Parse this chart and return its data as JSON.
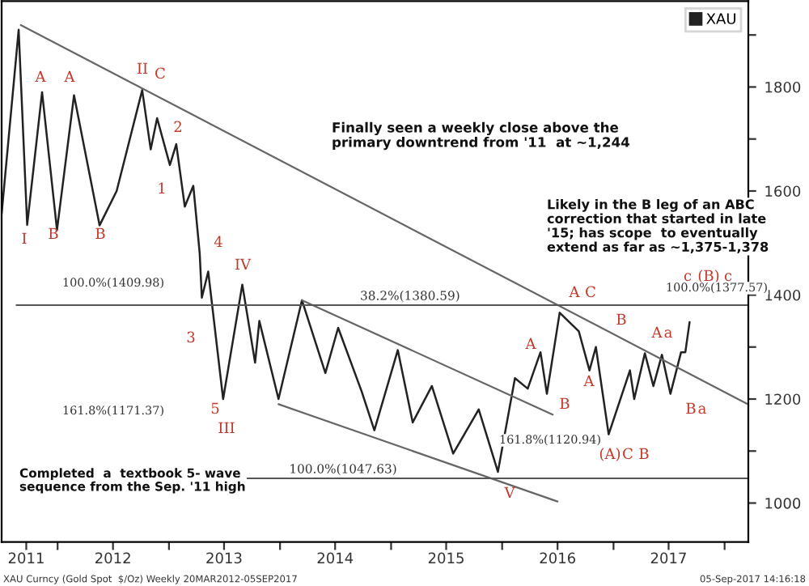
{
  "chart_data": {
    "type": "line",
    "series": [
      {
        "name": "XAU",
        "color": "#222222",
        "x": [
          "2011-07-01",
          "2011-08-26",
          "2011-09-23",
          "2011-11-11",
          "2011-12-30",
          "2012-02-24",
          "2012-05-18",
          "2012-07-13",
          "2012-10-05",
          "2012-11-02",
          "2012-11-23",
          "2013-01-04",
          "2013-01-25",
          "2013-02-22",
          "2013-03-22",
          "2013-04-12",
          "2013-04-19",
          "2013-05-10",
          "2013-06-28",
          "2013-08-30",
          "2013-10-11",
          "2013-10-25",
          "2013-12-27",
          "2014-03-14",
          "2014-05-30",
          "2014-07-11",
          "2014-09-26",
          "2014-11-07",
          "2015-01-23",
          "2015-03-13",
          "2015-05-15",
          "2015-07-24",
          "2015-10-16",
          "2015-12-18",
          "2016-02-12",
          "2016-03-25",
          "2016-05-06",
          "2016-05-27",
          "2016-07-08",
          "2016-09-09",
          "2016-10-14",
          "2016-11-04",
          "2016-12-16",
          "2017-02-24",
          "2017-03-10",
          "2017-04-14",
          "2017-05-12",
          "2017-06-09",
          "2017-07-07",
          "2017-08-11",
          "2017-08-25",
          "2017-09-08"
        ],
        "values": [
          1556,
          1910,
          1535,
          1790,
          1525,
          1784,
          1534,
          1600,
          1794,
          1680,
          1740,
          1650,
          1690,
          1570,
          1610,
          1480,
          1395,
          1445,
          1200,
          1420,
          1270,
          1350,
          1200,
          1390,
          1250,
          1337,
          1215,
          1140,
          1294,
          1155,
          1225,
          1095,
          1180,
          1060,
          1240,
          1220,
          1290,
          1210,
          1366,
          1330,
          1255,
          1300,
          1132,
          1255,
          1200,
          1288,
          1225,
          1285,
          1210,
          1290,
          1290,
          1348
        ]
      },
      {
        "color": "#666666",
        "x": [
          "2011-09-02",
          "2018-03-15"
        ],
        "values": [
          1919,
          1191
        ]
      },
      {
        "color": "#666666",
        "x": [
          "2014-03-14",
          "2016-06-15"
        ],
        "values": [
          1390,
          1170
        ]
      },
      {
        "color": "#666666",
        "x": [
          "2013-12-27",
          "2016-07-01"
        ],
        "values": [
          1190,
          1003
        ]
      }
    ],
    "xlim": [
      "2011-07-01",
      "2018-03-20"
    ],
    "xticks": [
      {
        "value": "2012-01-01",
        "label": null
      },
      {
        "value": "2013-01-01",
        "label": null
      },
      {
        "value": "2014-01-01",
        "label": null
      },
      {
        "value": "2015-01-01",
        "label": null
      },
      {
        "value": "2016-01-01",
        "label": null
      },
      {
        "value": "2017-01-01",
        "label": null
      },
      {
        "value": "2018-01-01",
        "label": null
      },
      {
        "value": "2011-09-20",
        "label": "2011"
      },
      {
        "value": "2012-07-01",
        "label": "2012"
      },
      {
        "value": "2013-07-01",
        "label": "2013"
      },
      {
        "value": "2014-07-01",
        "label": "2014"
      },
      {
        "value": "2015-07-01",
        "label": "2015"
      },
      {
        "value": "2016-07-01",
        "label": "2016"
      },
      {
        "value": "2017-07-01",
        "label": "2017"
      }
    ],
    "ylim": [
      925,
      1965
    ],
    "yticks": [
      1000,
      {
        "value": 1100,
        "label": null
      },
      1200,
      {
        "value": 1300,
        "label": null
      },
      1400,
      {
        "value": 1500,
        "label": null
      },
      1600,
      {
        "value": 1700,
        "label": null
      },
      1800,
      {
        "value": 1900,
        "label": null
      }
    ],
    "ref_lines": [
      {
        "axis": "y",
        "value": 1380.59,
        "label": "38.2%(1380.59)",
        "color": "#555555"
      },
      {
        "axis": "y",
        "value": 1047.63,
        "label": "100.0%(1047.63)",
        "color": "#555555"
      }
    ],
    "legend": "top right",
    "annotations": [
      "Finally seen a weekly close above the\nprimary downtrend from '11  at ~1,244",
      "Likely in the B leg of an ABC\ncorrection that started in late\n'15; has scope  to eventually\nextend as far as ~1,375-1,378",
      "Completed  a  textbook 5- wave\nsequence from the Sep. '11 high",
      "XAU Curncy (Gold Spot  $/Oz) Weekly 20MAR2012-05SEP2017",
      "05-Sep-2017 14:16:18",
      "I",
      "A",
      "B",
      "A",
      "B",
      "II",
      "C",
      "2",
      "1",
      "4",
      "IV",
      "3",
      "5",
      "III",
      "100.0%(1409.98)",
      "161.8%(1171.37)",
      "V",
      "A",
      "B",
      "A",
      "C",
      "B",
      "A",
      "161.8%(1120.94)",
      "(A)",
      "C",
      "B",
      "A",
      "a",
      "B",
      "a",
      "c",
      "(B)",
      "c",
      "100.0%(1377.57)"
    ]
  }
}
